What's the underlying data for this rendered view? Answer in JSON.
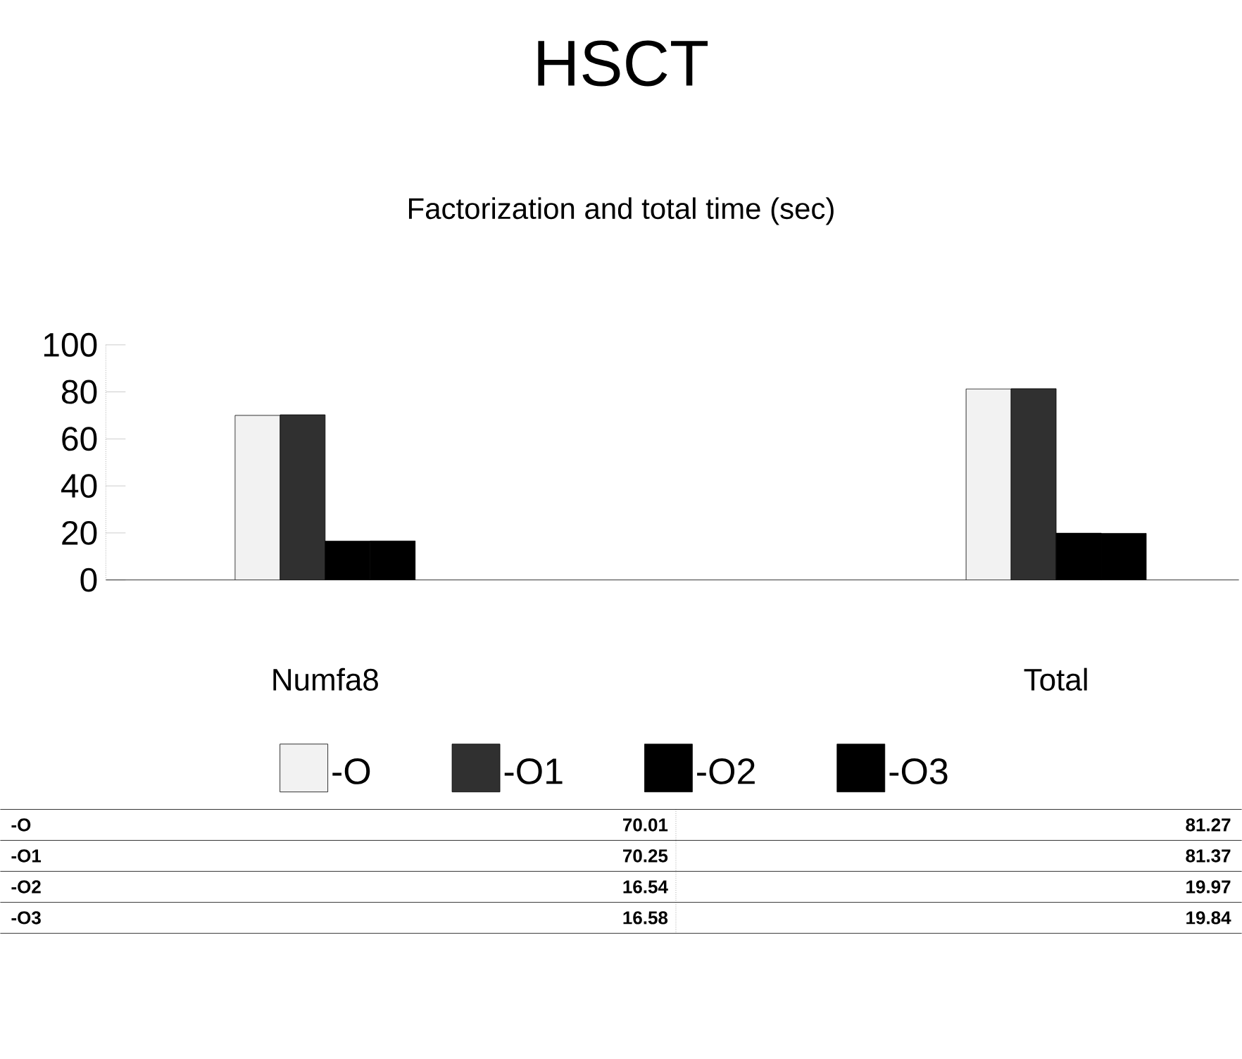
{
  "chart_data": {
    "type": "bar",
    "title": "HSCT",
    "subtitle": "Factorization and total time (sec)",
    "categories": [
      "Numfa8",
      "Total"
    ],
    "series": [
      {
        "name": "-O",
        "color": "#f2f2f2",
        "values": [
          70.01,
          81.27
        ]
      },
      {
        "name": "-O1",
        "color": "#303030",
        "values": [
          70.25,
          81.37
        ]
      },
      {
        "name": "-O2",
        "color": "#000000",
        "values": [
          16.54,
          19.97
        ]
      },
      {
        "name": "-O3",
        "color": "#000000",
        "values": [
          16.58,
          19.84
        ]
      }
    ],
    "ylim": [
      0,
      100
    ],
    "yticks": [
      0,
      20,
      40,
      60,
      80,
      100
    ],
    "legend": "bottom",
    "data_labels": true
  }
}
